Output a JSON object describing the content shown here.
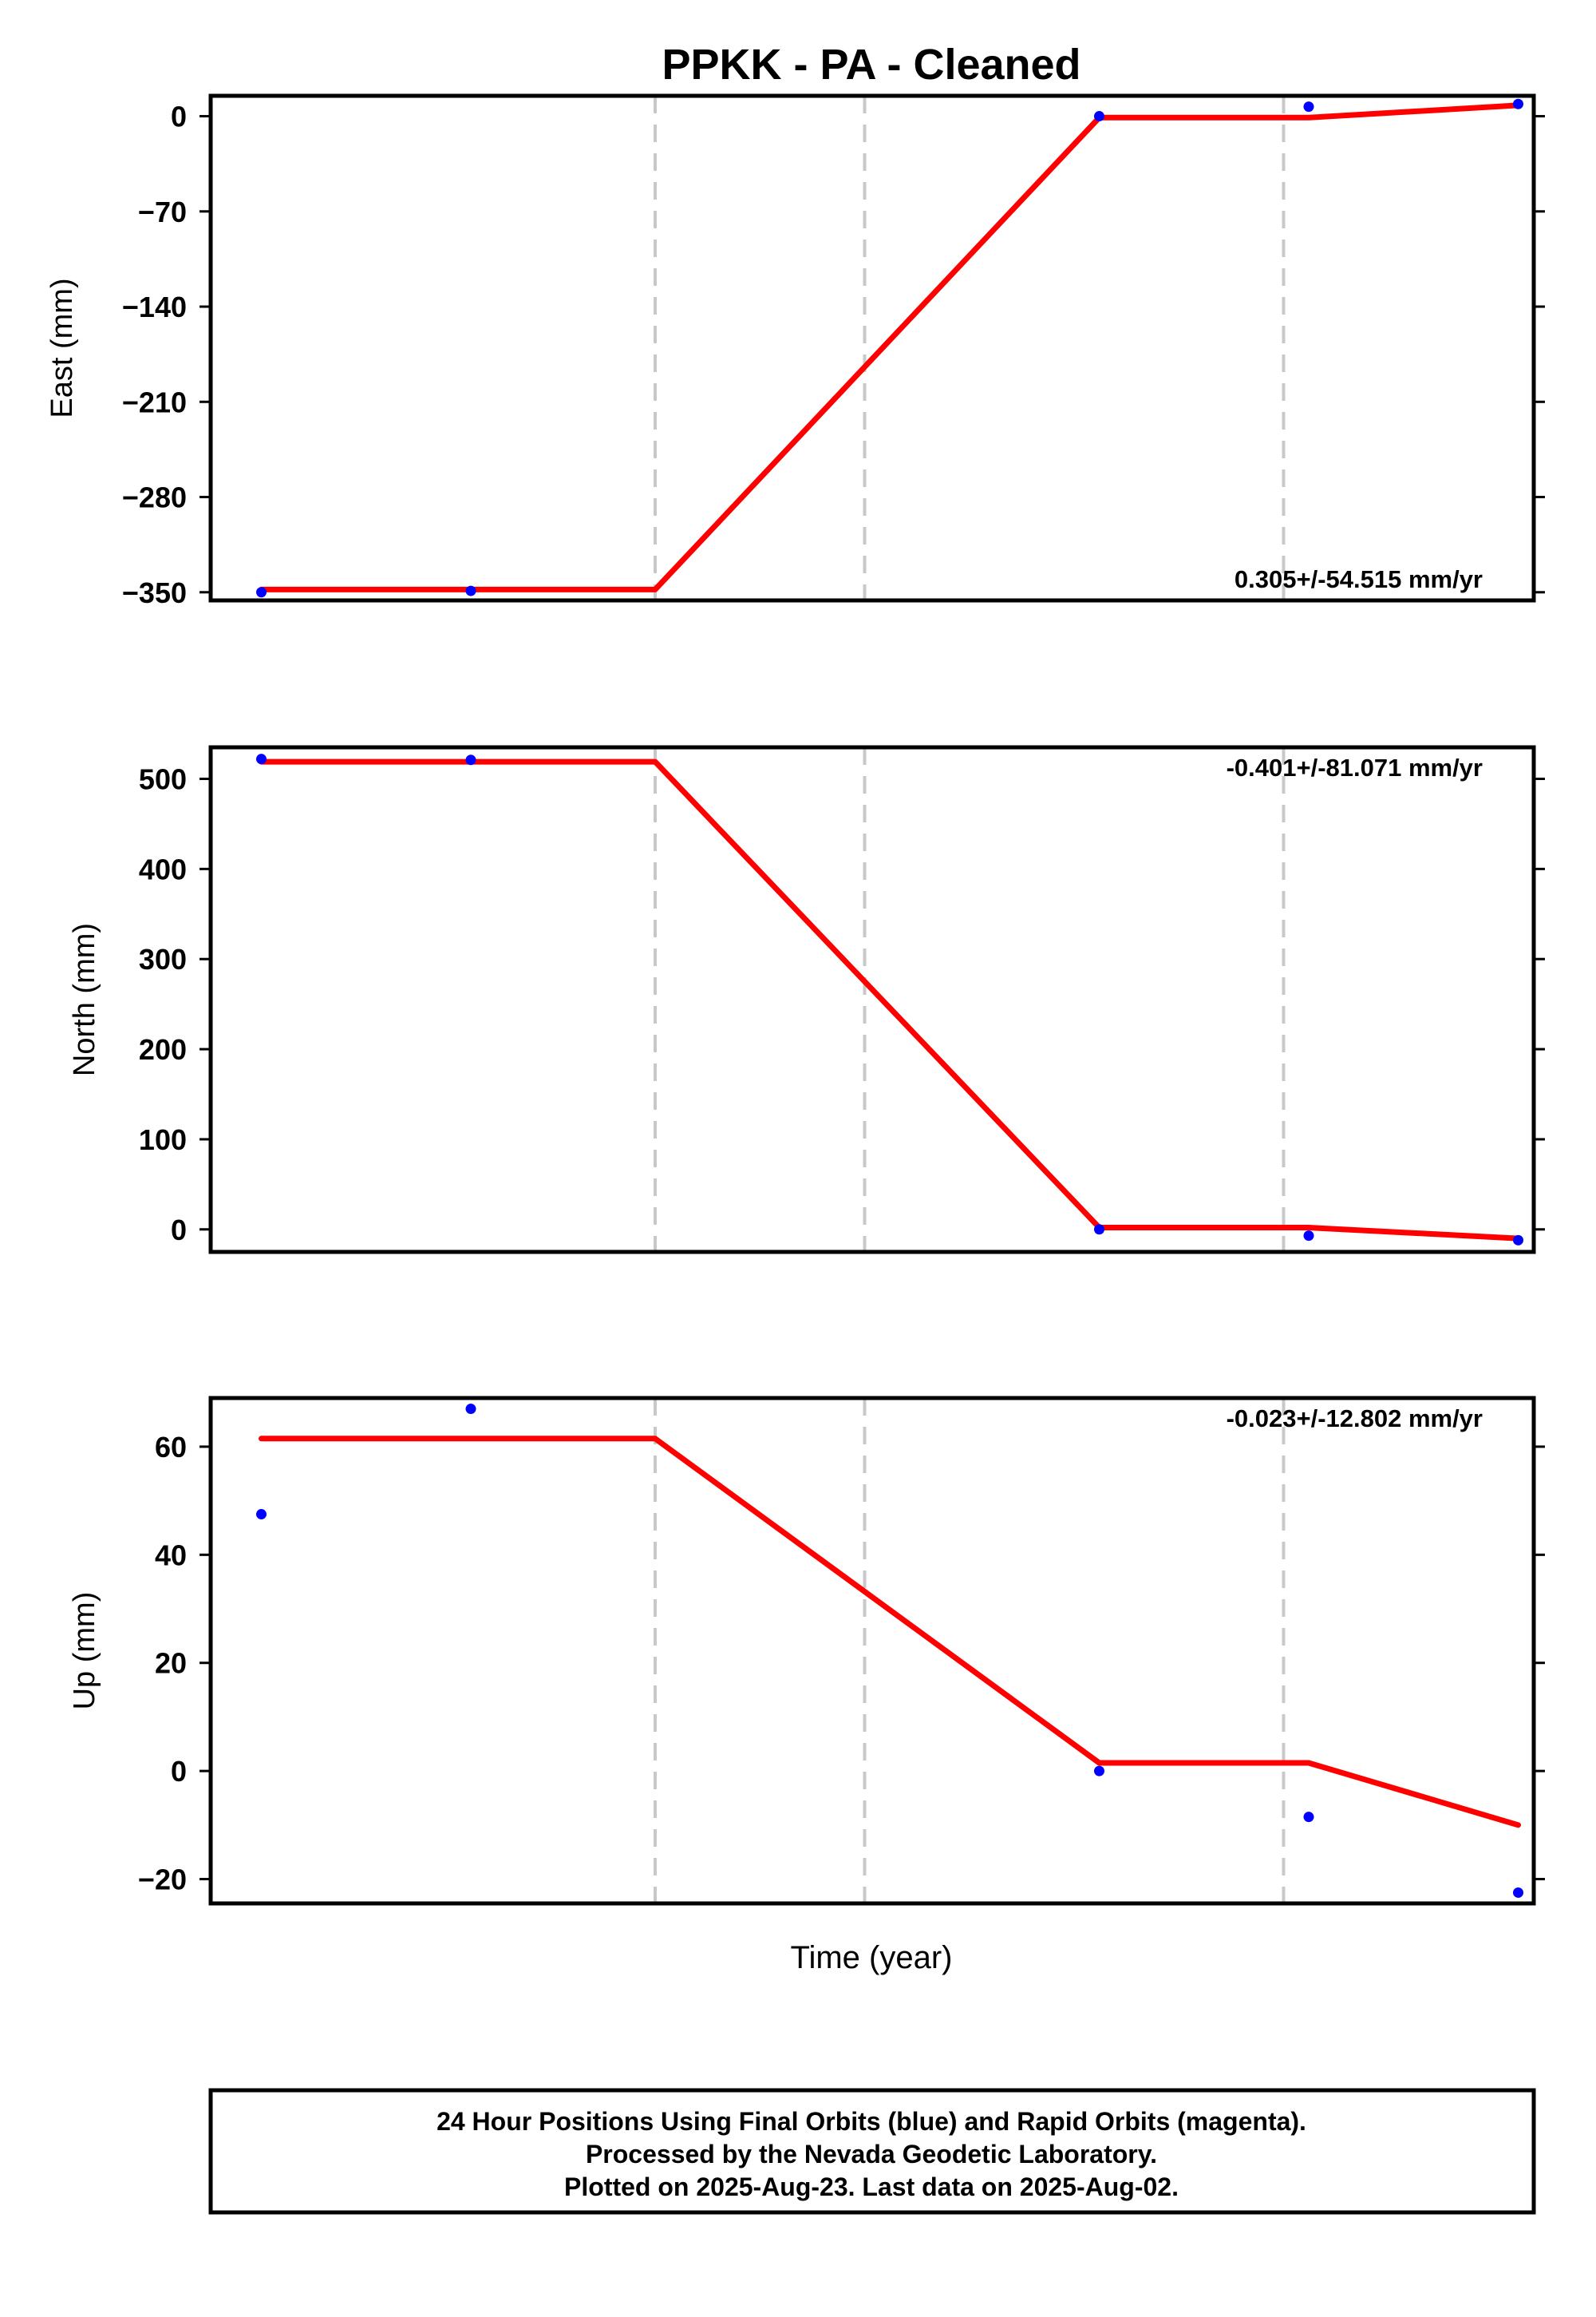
{
  "chart_data": {
    "type": "line",
    "title": "PPKK  - PA - Cleaned",
    "xlabel": "Time (year)",
    "x": [
      0,
      1,
      2,
      3,
      4,
      5,
      6
    ],
    "breaks": [
      2,
      3,
      5
    ],
    "colors": {
      "points": "#0000ff",
      "fit": "#ff0000",
      "breaks": "#c8c8c8"
    },
    "panels": [
      {
        "ylabel": "East (mm)",
        "ticks": [
          0,
          -70,
          -140,
          -210,
          -280,
          -350
        ],
        "tick_labels": [
          "0",
          "−70",
          "−140",
          "−210",
          "−280",
          "−350"
        ],
        "ylim": [
          -356,
          15
        ],
        "rate": "0.305+/-54.515 mm/yr",
        "rate_position": "bottom-right",
        "points": [
          [
            0.12,
            -350
          ],
          [
            1.12,
            -349
          ],
          [
            4.12,
            0
          ],
          [
            5.12,
            7
          ],
          [
            6.12,
            9
          ]
        ],
        "fit": [
          [
            0.12,
            -348
          ],
          [
            2,
            -348
          ],
          [
            4.12,
            -1
          ],
          [
            5.12,
            -1
          ],
          [
            6.12,
            8
          ]
        ]
      },
      {
        "ylabel": "North (mm)",
        "ticks": [
          500,
          400,
          300,
          200,
          100,
          0
        ],
        "tick_labels": [
          "500",
          "400",
          "300",
          "200",
          "100",
          "0"
        ],
        "ylim": [
          -25,
          535
        ],
        "rate": "-0.401+/-81.071 mm/yr",
        "rate_position": "top-right",
        "points": [
          [
            0.12,
            522
          ],
          [
            1.12,
            521
          ],
          [
            4.12,
            0
          ],
          [
            5.12,
            -7
          ],
          [
            6.12,
            -12
          ]
        ],
        "fit": [
          [
            0.12,
            519
          ],
          [
            2,
            519
          ],
          [
            4.12,
            2
          ],
          [
            5.12,
            2
          ],
          [
            6.12,
            -10
          ]
        ]
      },
      {
        "ylabel": "Up (mm)",
        "ticks": [
          60,
          40,
          20,
          0,
          -20
        ],
        "tick_labels": [
          "60",
          "40",
          "20",
          "0",
          "−20"
        ],
        "ylim": [
          -24.5,
          69
        ],
        "rate": "-0.023+/-12.802 mm/yr",
        "rate_position": "top-right",
        "points": [
          [
            0.12,
            47.5
          ],
          [
            1.12,
            67
          ],
          [
            4.12,
            0
          ],
          [
            5.12,
            -8.5
          ],
          [
            6.12,
            -22.5
          ]
        ],
        "fit": [
          [
            0.12,
            61.5
          ],
          [
            2,
            61.5
          ],
          [
            4.12,
            1.5
          ],
          [
            5.12,
            1.5
          ],
          [
            6.12,
            -10
          ]
        ]
      }
    ]
  },
  "footer": {
    "line1": "24 Hour Positions Using Final Orbits (blue) and Rapid Orbits (magenta).",
    "line2": "Processed by the Nevada Geodetic Laboratory.",
    "line3": "Plotted on 2025-Aug-23. Last data on 2025-Aug-02."
  }
}
